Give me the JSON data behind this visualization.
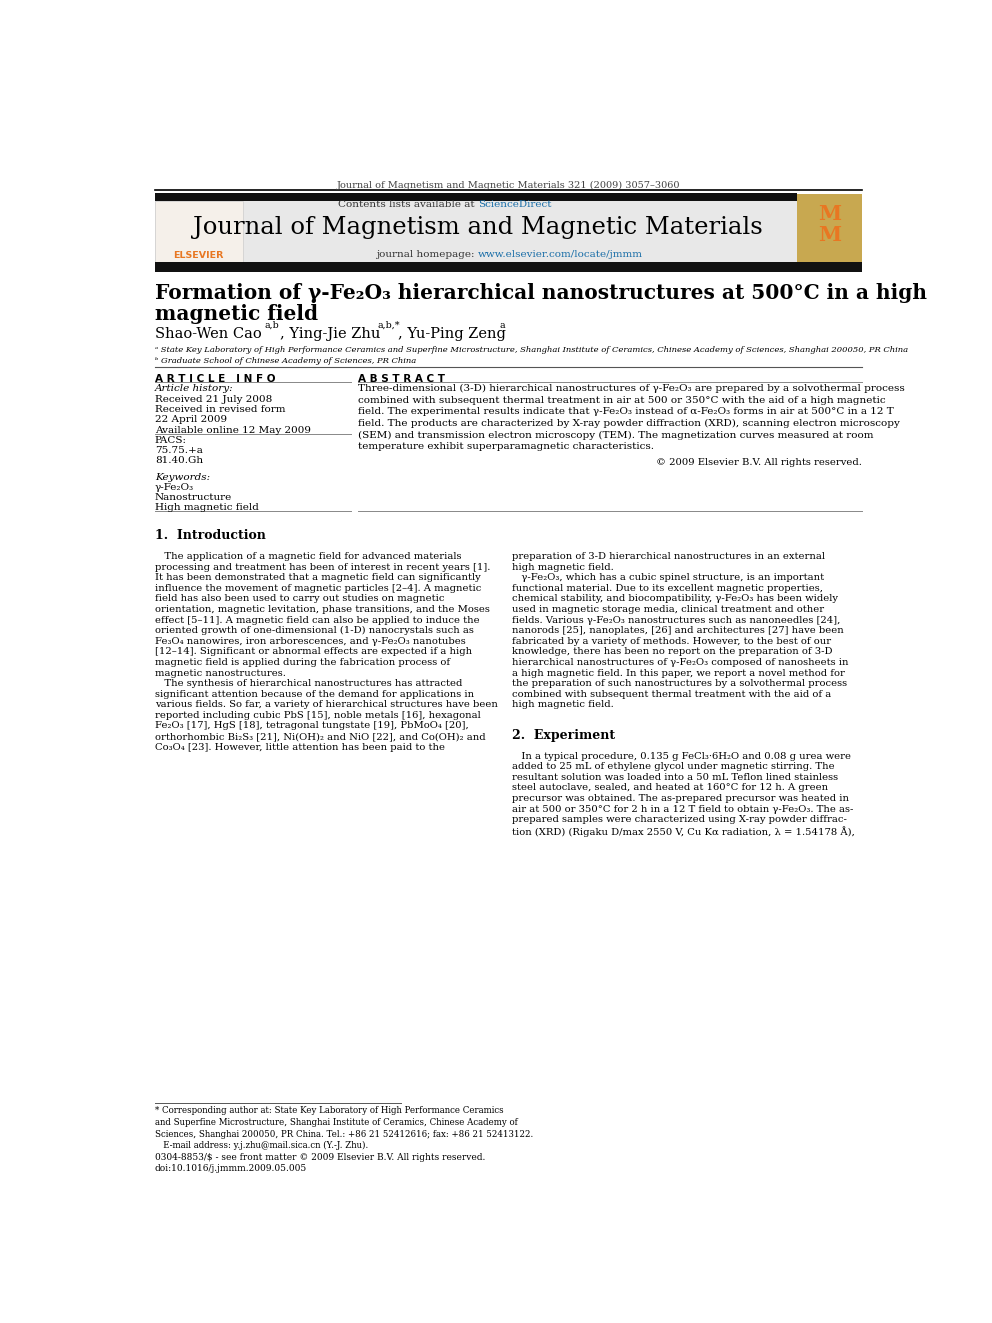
{
  "page_width": 9.92,
  "page_height": 13.23,
  "background_color": "#ffffff",
  "journal_ref": "Journal of Magnetism and Magnetic Materials 321 (2009) 3057–3060",
  "header_bg": "#e8e8e8",
  "contents_line_prefix": "Contents lists available at ",
  "sciencedirect_text": "ScienceDirect",
  "sciencedirect_color": "#1a6ea8",
  "journal_title": "Journal of Magnetism and Magnetic Materials",
  "homepage_prefix": "journal homepage: ",
  "homepage_url": "www.elsevier.com/locate/jmmm",
  "homepage_color": "#1a6ea8",
  "paper_title_line1": "Formation of γ-Fe₂O₃ hierarchical nanostructures at 500°C in a high",
  "paper_title_line2": "magnetic field",
  "affil_a": "ᵃ State Key Laboratory of High Performance Ceramics and Superfine Microstructure, Shanghai Institute of Ceramics, Chinese Academy of Sciences, Shanghai 200050, PR China",
  "affil_b": "ᵇ Graduate School of Chinese Academy of Sciences, PR China",
  "article_info_header": "A R T I C L E   I N F O",
  "article_history": "Article history:",
  "received": "Received 21 July 2008",
  "revised": "Received in revised form",
  "revised2": "22 April 2009",
  "available": "Available online 12 May 2009",
  "pacs_label": "PACS:",
  "pacs1": "75.75.+a",
  "pacs2": "81.40.Gh",
  "keywords_label": "Keywords:",
  "kw1": "γ-Fe₂O₃",
  "kw2": "Nanostructure",
  "kw3": "High magnetic field",
  "abstract_header": "A B S T R A C T",
  "abstract_text": "Three-dimensional (3-D) hierarchical nanostructures of γ-Fe₂O₃ are prepared by a solvothermal process\ncombined with subsequent thermal treatment in air at 500 or 350°C with the aid of a high magnetic\nfield. The experimental results indicate that γ-Fe₂O₃ instead of α-Fe₂O₃ forms in air at 500°C in a 12 T\nfield. The products are characterized by X-ray powder diffraction (XRD), scanning electron microscopy\n(SEM) and transmission electron microscopy (TEM). The magnetization curves measured at room\ntemperature exhibit superparamagnetic characteristics.",
  "copyright": "© 2009 Elsevier B.V. All rights reserved.",
  "intro_header": "1.  Introduction",
  "intro_col1_lines": [
    "   The application of a magnetic field for advanced materials",
    "processing and treatment has been of interest in recent years [1].",
    "It has been demonstrated that a magnetic field can significantly",
    "influence the movement of magnetic particles [2–4]. A magnetic",
    "field has also been used to carry out studies on magnetic",
    "orientation, magnetic levitation, phase transitions, and the Moses",
    "effect [5–11]. A magnetic field can also be applied to induce the",
    "oriented growth of one-dimensional (1-D) nanocrystals such as",
    "Fe₃O₄ nanowires, iron arborescences, and γ-Fe₂O₃ nanotubes",
    "[12–14]. Significant or abnormal effects are expected if a high",
    "magnetic field is applied during the fabrication process of",
    "magnetic nanostructures.",
    "   The synthesis of hierarchical nanostructures has attracted",
    "significant attention because of the demand for applications in",
    "various fields. So far, a variety of hierarchical structures have been",
    "reported including cubic PbS [15], noble metals [16], hexagonal",
    "Fe₂O₃ [17], HgS [18], tetragonal tungstate [19], PbMoO₄ [20],",
    "orthorhombic Bi₂S₃ [21], Ni(OH)₂ and NiO [22], and Co(OH)₂ and",
    "Co₃O₄ [23]. However, little attention has been paid to the"
  ],
  "intro_col2_lines": [
    "preparation of 3-D hierarchical nanostructures in an external",
    "high magnetic field.",
    "   γ-Fe₂O₃, which has a cubic spinel structure, is an important",
    "functional material. Due to its excellent magnetic properties,",
    "chemical stability, and biocompatibility, γ-Fe₂O₃ has been widely",
    "used in magnetic storage media, clinical treatment and other",
    "fields. Various γ-Fe₂O₃ nanostructures such as nanoneedles [24],",
    "nanorods [25], nanoplates, [26] and architectures [27] have been",
    "fabricated by a variety of methods. However, to the best of our",
    "knowledge, there has been no report on the preparation of 3-D",
    "hierarchical nanostructures of γ-Fe₂O₃ composed of nanosheets in",
    "a high magnetic field. In this paper, we report a novel method for",
    "the preparation of such nanostructures by a solvothermal process",
    "combined with subsequent thermal treatment with the aid of a",
    "high magnetic field."
  ],
  "section2_header": "2.  Experiment",
  "section2_col2_lines": [
    "   In a typical procedure, 0.135 g FeCl₃·6H₂O and 0.08 g urea were",
    "added to 25 mL of ethylene glycol under magnetic stirring. The",
    "resultant solution was loaded into a 50 mL Teflon lined stainless",
    "steel autoclave, sealed, and heated at 160°C for 12 h. A green",
    "precursor was obtained. The as-prepared precursor was heated in",
    "air at 500 or 350°C for 2 h in a 12 T field to obtain γ-Fe₂O₃. The as-",
    "prepared samples were characterized using X-ray powder diffrac-",
    "tion (XRD) (Rigaku D/max 2550 V, Cu Kα radiation, λ = 1.54178 Å),"
  ],
  "footnote_lines": [
    "* Corresponding author at: State Key Laboratory of High Performance Ceramics",
    "and Superfine Microstructure, Shanghai Institute of Ceramics, Chinese Academy of",
    "Sciences, Shanghai 200050, PR China. Tel.: +86 21 52412616; fax: +86 21 52413122.",
    "   E-mail address: y.j.zhu@mail.sica.cn (Y.-J. Zhu)."
  ],
  "bottom_line1": "0304-8853/$ - see front matter © 2009 Elsevier B.V. All rights reserved.",
  "bottom_line2": "doi:10.1016/j.jmmm.2009.05.005",
  "elsevier_orange": "#e87722",
  "journal_logo_bg": "#c8a850",
  "header_bar_color": "#111111",
  "link_color": "#1a6ea8"
}
